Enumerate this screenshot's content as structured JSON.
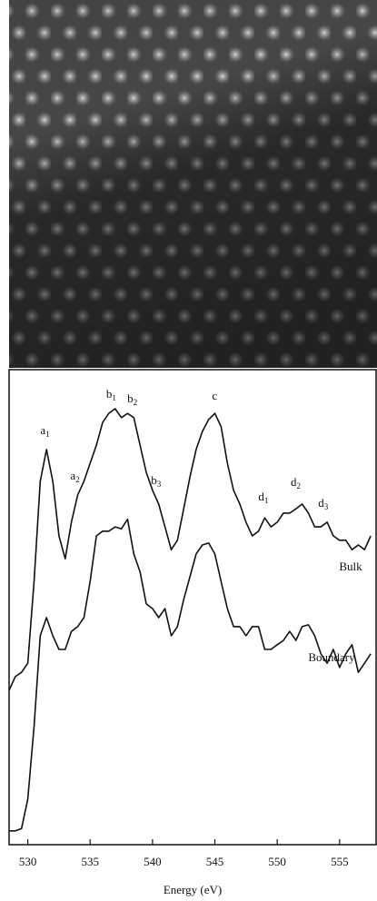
{
  "chart_data": {
    "type": "line",
    "xlabel": "Energy (eV)",
    "xlim": [
      528.5,
      558
    ],
    "ylim": [
      0,
      100
    ],
    "xticks": [
      530,
      535,
      540,
      545,
      550,
      555
    ],
    "x": [
      528.5,
      529,
      529.5,
      530,
      530.5,
      531,
      531.5,
      532,
      532.5,
      533,
      533.5,
      534,
      534.5,
      535,
      535.5,
      536,
      536.5,
      537,
      537.5,
      538,
      538.5,
      539,
      539.5,
      540,
      540.5,
      541,
      541.5,
      542,
      542.5,
      543,
      543.5,
      544,
      544.5,
      545,
      545.5,
      546,
      546.5,
      547,
      547.5,
      548,
      548.5,
      549,
      549.5,
      550,
      550.5,
      551,
      551.5,
      552,
      552.5,
      553,
      553.5,
      554,
      554.5,
      555,
      555.5,
      556,
      556.5,
      557,
      557.5
    ],
    "series": [
      {
        "name": "Bulk",
        "color": "#111111",
        "values": [
          32.5,
          35.4,
          36.3,
          38.2,
          55.4,
          76.5,
          83.2,
          76.5,
          65.0,
          60.2,
          67.9,
          73.6,
          76.5,
          80.3,
          84.1,
          88.9,
          90.8,
          91.8,
          89.9,
          90.8,
          89.9,
          84.1,
          78.4,
          74.6,
          71.7,
          66.9,
          62.1,
          64.1,
          70.7,
          77.4,
          83.2,
          87.0,
          89.5,
          90.8,
          88.0,
          80.3,
          74.6,
          71.7,
          67.9,
          65.0,
          66.0,
          68.8,
          66.9,
          67.9,
          69.8,
          69.8,
          70.7,
          71.7,
          69.8,
          66.9,
          66.9,
          67.9,
          65.0,
          64.1,
          64.1,
          62.1,
          63.1,
          62.1,
          65.0
        ]
      },
      {
        "name": "Boundary",
        "color": "#111111",
        "values": [
          2.9,
          2.9,
          3.4,
          9.6,
          24.9,
          44.0,
          47.8,
          44.0,
          41.1,
          41.1,
          44.9,
          45.9,
          47.8,
          55.4,
          65.0,
          66.0,
          66.0,
          66.9,
          66.5,
          68.5,
          61.2,
          57.4,
          50.7,
          49.7,
          47.8,
          49.7,
          44.0,
          45.9,
          51.6,
          56.4,
          61.2,
          63.1,
          63.5,
          61.2,
          55.4,
          49.7,
          45.9,
          45.9,
          44.0,
          45.9,
          45.9,
          41.1,
          41.1,
          42.1,
          43.0,
          44.9,
          43.0,
          45.9,
          46.3,
          44.0,
          40.2,
          38.2,
          41.1,
          37.3,
          40.2,
          42.1,
          36.3,
          38.2,
          40.2
        ]
      }
    ],
    "annotations": [
      {
        "text": "a",
        "sub": "1",
        "x": 531.6,
        "y": 87.0
      },
      {
        "text": "a",
        "sub": "2",
        "x": 534.0,
        "y": 77.4
      },
      {
        "text": "b",
        "sub": "1",
        "x": 536.9,
        "y": 94.6
      },
      {
        "text": "b",
        "sub": "2",
        "x": 538.6,
        "y": 93.7
      },
      {
        "text": "b",
        "sub": "3",
        "x": 540.5,
        "y": 76.5
      },
      {
        "text": "c",
        "x": 545.2,
        "y": 94.3
      },
      {
        "text": "d",
        "sub": "1",
        "x": 549.1,
        "y": 73.0
      },
      {
        "text": "d",
        "sub": "2",
        "x": 551.7,
        "y": 76.1
      },
      {
        "text": "d",
        "sub": "3",
        "x": 553.9,
        "y": 71.7
      }
    ]
  }
}
